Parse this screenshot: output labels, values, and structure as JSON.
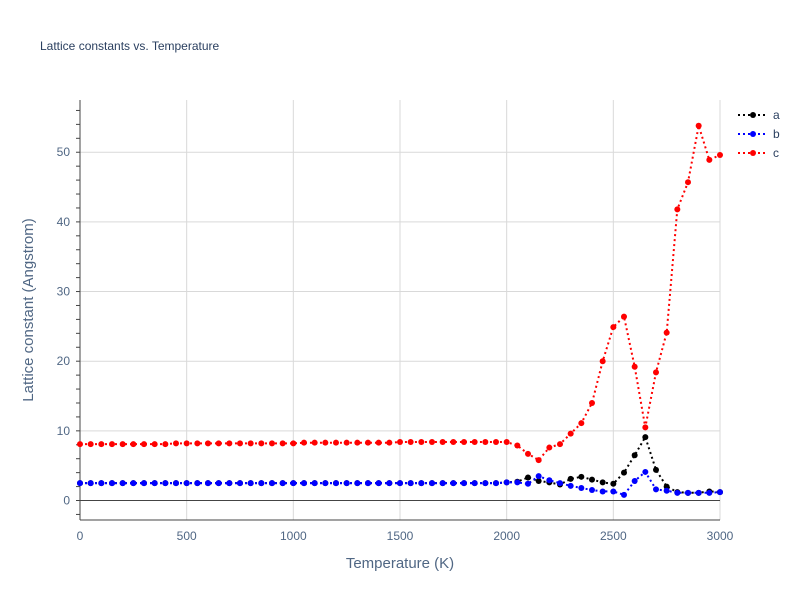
{
  "chart_data": {
    "type": "line",
    "title": "Lattice constants vs. Temperature",
    "xlabel": "Temperature (K)",
    "ylabel": "Lattice constant (Angstrom)",
    "xlim": [
      0,
      3000
    ],
    "ylim": [
      -2.8,
      57.5
    ],
    "xticks": [
      0,
      500,
      1000,
      1500,
      2000,
      2500,
      3000
    ],
    "yticks": [
      0,
      10,
      20,
      30,
      40,
      50
    ],
    "grid": true,
    "legend_position": "top-right",
    "x": [
      0,
      50,
      100,
      150,
      200,
      250,
      300,
      350,
      400,
      450,
      500,
      550,
      600,
      650,
      700,
      750,
      800,
      850,
      900,
      950,
      1000,
      1050,
      1100,
      1150,
      1200,
      1250,
      1300,
      1350,
      1400,
      1450,
      1500,
      1550,
      1600,
      1650,
      1700,
      1750,
      1800,
      1850,
      1900,
      1950,
      2000,
      2050,
      2100,
      2150,
      2200,
      2250,
      2300,
      2350,
      2400,
      2450,
      2500,
      2550,
      2600,
      2650,
      2700,
      2750,
      2800,
      2850,
      2900,
      2950,
      3000
    ],
    "series": [
      {
        "name": "a",
        "color": "#000000",
        "values": [
          2.5,
          2.5,
          2.5,
          2.5,
          2.5,
          2.5,
          2.5,
          2.5,
          2.5,
          2.5,
          2.5,
          2.5,
          2.5,
          2.5,
          2.5,
          2.5,
          2.5,
          2.5,
          2.5,
          2.5,
          2.5,
          2.5,
          2.5,
          2.5,
          2.5,
          2.5,
          2.5,
          2.5,
          2.5,
          2.5,
          2.5,
          2.5,
          2.5,
          2.5,
          2.5,
          2.5,
          2.5,
          2.5,
          2.5,
          2.5,
          2.6,
          2.7,
          3.3,
          2.8,
          2.6,
          2.3,
          3.1,
          3.4,
          3.0,
          2.6,
          2.4,
          4.0,
          6.5,
          9.1,
          4.4,
          2.0,
          1.2,
          1.1,
          1.1,
          1.3,
          1.2
        ]
      },
      {
        "name": "b",
        "color": "#0000ff",
        "values": [
          2.5,
          2.5,
          2.5,
          2.5,
          2.5,
          2.5,
          2.5,
          2.5,
          2.5,
          2.5,
          2.5,
          2.5,
          2.5,
          2.5,
          2.5,
          2.5,
          2.5,
          2.5,
          2.5,
          2.5,
          2.5,
          2.5,
          2.5,
          2.5,
          2.5,
          2.5,
          2.5,
          2.5,
          2.5,
          2.5,
          2.5,
          2.5,
          2.5,
          2.5,
          2.5,
          2.5,
          2.5,
          2.5,
          2.5,
          2.5,
          2.6,
          2.6,
          2.4,
          3.5,
          2.9,
          2.5,
          2.1,
          1.8,
          1.5,
          1.3,
          1.3,
          0.8,
          2.8,
          4.1,
          1.6,
          1.4,
          1.1,
          1.1,
          1.1,
          1.1,
          1.2
        ]
      },
      {
        "name": "c",
        "color": "#ff0000",
        "values": [
          8.1,
          8.1,
          8.1,
          8.1,
          8.1,
          8.1,
          8.1,
          8.1,
          8.1,
          8.2,
          8.2,
          8.2,
          8.2,
          8.2,
          8.2,
          8.2,
          8.2,
          8.2,
          8.2,
          8.2,
          8.2,
          8.3,
          8.3,
          8.3,
          8.3,
          8.3,
          8.3,
          8.3,
          8.3,
          8.3,
          8.4,
          8.4,
          8.4,
          8.4,
          8.4,
          8.4,
          8.4,
          8.4,
          8.4,
          8.4,
          8.4,
          7.9,
          6.7,
          5.8,
          7.6,
          8.1,
          9.6,
          11.1,
          14.0,
          20.0,
          24.9,
          26.4,
          19.2,
          10.5,
          18.4,
          24.1,
          41.8,
          45.7,
          53.8,
          48.9,
          49.6
        ]
      }
    ]
  }
}
